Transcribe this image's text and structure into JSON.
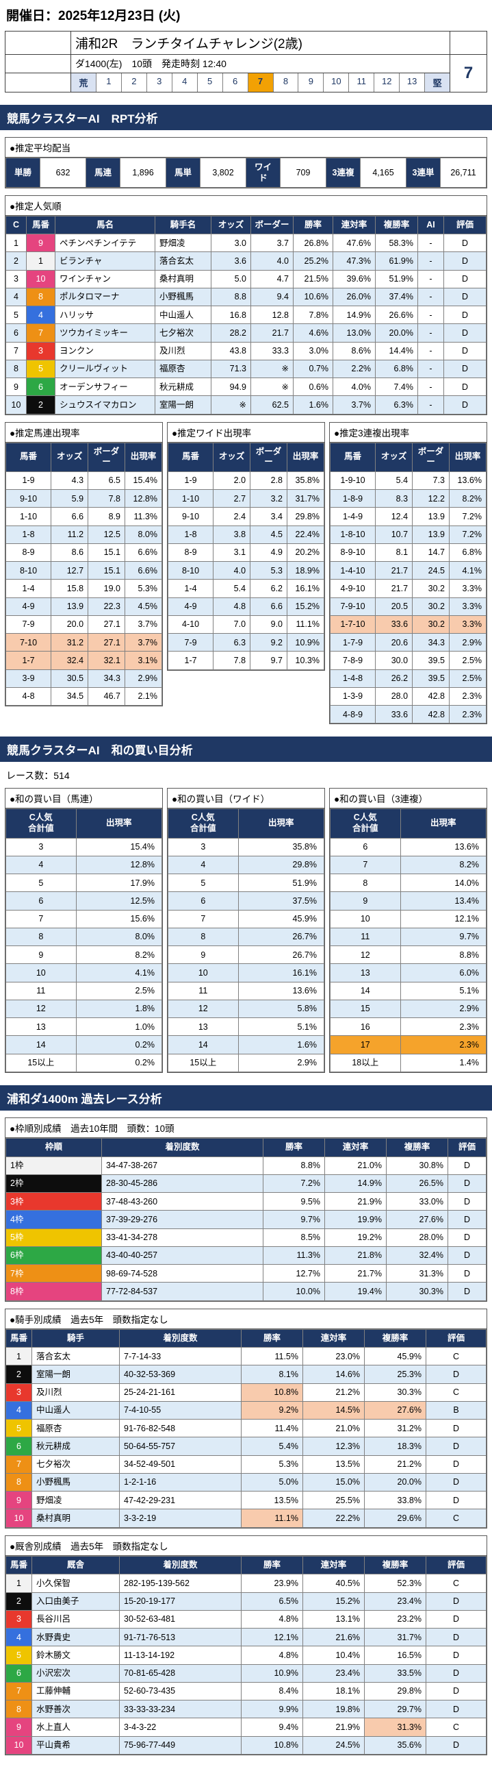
{
  "header": {
    "date": "開催日：2025年12月23日 (火)"
  },
  "race": {
    "name_label": "レース名",
    "name": "浦和2R　ランチタイムチャレンジ(2歳)",
    "detail_label": "レース詳細",
    "detail": "ダ1400(左)　10頭　発走時刻 12:40",
    "rpt_label": "RPT",
    "rpt_value": "7",
    "rpt_scale": [
      {
        "t": "荒",
        "c": "edge"
      },
      {
        "t": "1"
      },
      {
        "t": "2"
      },
      {
        "t": "3"
      },
      {
        "t": "4"
      },
      {
        "t": "5"
      },
      {
        "t": "6"
      },
      {
        "t": "7",
        "c": "sel"
      },
      {
        "t": "8"
      },
      {
        "t": "9"
      },
      {
        "t": "10"
      },
      {
        "t": "11"
      },
      {
        "t": "12"
      },
      {
        "t": "13"
      },
      {
        "t": "堅",
        "c": "edge"
      }
    ]
  },
  "sections": {
    "rpt": "競馬クラスターAI　RPT分析",
    "wa": "競馬クラスターAI　和の買い目分析",
    "past": "浦和ダ1400m 過去レース分析"
  },
  "wa_races_label": "レース数：514",
  "colors": {
    "navy": "#1F3864",
    "zebra": "#DDEBF7",
    "highlight_salmon": "#F8CBAD",
    "highlight_orange": "#F5A32B",
    "rpt_selected_bg": "#F2A104",
    "rpt_value_bg": "#BDD7EE"
  },
  "tables": {
    "payout": {
      "title": "●推定平均配当",
      "rows": [
        [
          {
            "t": "単勝",
            "c": "lbl"
          },
          "632",
          {
            "t": "馬連",
            "c": "lbl"
          },
          "1,896",
          {
            "t": "馬単",
            "c": "lbl"
          },
          "3,802",
          {
            "t": "ワイド",
            "c": "lbl"
          },
          "709",
          {
            "t": "3連複",
            "c": "lbl"
          },
          "4,165",
          {
            "t": "3連単",
            "c": "lbl"
          },
          "26,711"
        ]
      ]
    },
    "popularity": {
      "title": "●推定人気順",
      "headers": [
        "C",
        "馬番",
        "馬名",
        "騎手名",
        "オッズ",
        "ボーダー",
        "勝率",
        "連対率",
        "複勝率",
        "AI",
        "評価"
      ],
      "rows": [
        [
          "1",
          {
            "t": "9",
            "c": "waku8"
          },
          "ペチンペチンイテテ",
          "野畑凌",
          "3.0",
          "3.7",
          "26.8%",
          "47.6%",
          "58.3%",
          "-",
          "D"
        ],
        [
          "2",
          {
            "t": "1",
            "c": "waku1"
          },
          "ビランチャ",
          "落合玄太",
          "3.6",
          "4.0",
          "25.2%",
          "47.3%",
          "61.9%",
          "-",
          "D"
        ],
        [
          "3",
          {
            "t": "10",
            "c": "waku8"
          },
          "ワインチャン",
          "桑村真明",
          "5.0",
          "4.7",
          "21.5%",
          "39.6%",
          "51.9%",
          "-",
          "D"
        ],
        [
          "4",
          {
            "t": "8",
            "c": "waku7"
          },
          "ポルタロマーナ",
          "小野楓馬",
          "8.8",
          "9.4",
          "10.6%",
          "26.0%",
          "37.4%",
          "-",
          "D"
        ],
        [
          "5",
          {
            "t": "4",
            "c": "waku4"
          },
          "ハリッサ",
          "中山遥人",
          "16.8",
          "12.8",
          "7.8%",
          "14.9%",
          "26.6%",
          "-",
          "D"
        ],
        [
          "6",
          {
            "t": "7",
            "c": "waku7"
          },
          "ツウカイミッキー",
          "七夕裕次",
          "28.2",
          "21.7",
          "4.6%",
          "13.0%",
          "20.0%",
          "-",
          "D"
        ],
        [
          "7",
          {
            "t": "3",
            "c": "waku3"
          },
          "ヨンクン",
          "及川烈",
          "43.8",
          "33.3",
          "3.0%",
          "8.6%",
          "14.4%",
          "-",
          "D"
        ],
        [
          "8",
          {
            "t": "5",
            "c": "waku5"
          },
          "クリールヴィット",
          "福原杏",
          "71.3",
          "※",
          "0.7%",
          "2.2%",
          "6.8%",
          "-",
          "D"
        ],
        [
          "9",
          {
            "t": "6",
            "c": "waku6"
          },
          "オーデンサフィー",
          "秋元耕成",
          "94.9",
          "※",
          "0.6%",
          "4.0%",
          "7.4%",
          "-",
          "D"
        ],
        [
          "10",
          {
            "t": "2",
            "c": "waku2"
          },
          "シュウスイマカロン",
          "室陽一朗",
          "※",
          "62.5",
          "1.6%",
          "3.7%",
          "6.3%",
          "-",
          "D"
        ]
      ]
    },
    "umaren": {
      "title": "●推定馬連出現率",
      "headers": [
        "馬番",
        "オッズ",
        "ボーダー",
        "出現率"
      ],
      "rows": [
        [
          "1-9",
          "4.3",
          "6.5",
          "15.4%"
        ],
        [
          "9-10",
          "5.9",
          "7.8",
          "12.8%"
        ],
        [
          "1-10",
          "6.6",
          "8.9",
          "11.3%"
        ],
        [
          "1-8",
          "11.2",
          "12.5",
          "8.0%"
        ],
        [
          "8-9",
          "8.6",
          "15.1",
          "6.6%"
        ],
        [
          "8-10",
          "12.7",
          "15.1",
          "6.6%"
        ],
        [
          "1-4",
          "15.8",
          "19.0",
          "5.3%"
        ],
        [
          "4-9",
          "13.9",
          "22.3",
          "4.5%"
        ],
        [
          "7-9",
          "20.0",
          "27.1",
          "3.7%"
        ],
        {
          "cls": "hlrow",
          "cells": [
            "7-10",
            "31.2",
            "27.1",
            "3.7%"
          ]
        },
        {
          "cls": "hlrow",
          "cells": [
            "1-7",
            "32.4",
            "32.1",
            "3.1%"
          ]
        },
        [
          "3-9",
          "30.5",
          "34.3",
          "2.9%"
        ],
        [
          "4-8",
          "34.5",
          "46.7",
          "2.1%"
        ]
      ]
    },
    "wide": {
      "title": "●推定ワイド出現率",
      "headers": [
        "馬番",
        "オッズ",
        "ボーダー",
        "出現率"
      ],
      "rows": [
        [
          "1-9",
          "2.0",
          "2.8",
          "35.8%"
        ],
        [
          "1-10",
          "2.7",
          "3.2",
          "31.7%"
        ],
        [
          "9-10",
          "2.4",
          "3.4",
          "29.8%"
        ],
        [
          "1-8",
          "3.8",
          "4.5",
          "22.4%"
        ],
        [
          "8-9",
          "3.1",
          "4.9",
          "20.2%"
        ],
        [
          "8-10",
          "4.0",
          "5.3",
          "18.9%"
        ],
        [
          "1-4",
          "5.4",
          "6.2",
          "16.1%"
        ],
        [
          "4-9",
          "4.8",
          "6.6",
          "15.2%"
        ],
        [
          "4-10",
          "7.0",
          "9.0",
          "11.1%"
        ],
        [
          "7-9",
          "6.3",
          "9.2",
          "10.9%"
        ],
        [
          "1-7",
          "7.8",
          "9.7",
          "10.3%"
        ]
      ]
    },
    "sanrenpuku": {
      "title": "●推定3連複出現率",
      "headers": [
        "馬番",
        "オッズ",
        "ボーダー",
        "出現率"
      ],
      "rows": [
        [
          "1-9-10",
          "5.4",
          "7.3",
          "13.6%"
        ],
        [
          "1-8-9",
          "8.3",
          "12.2",
          "8.2%"
        ],
        [
          "1-4-9",
          "12.4",
          "13.9",
          "7.2%"
        ],
        [
          "1-8-10",
          "10.7",
          "13.9",
          "7.2%"
        ],
        [
          "8-9-10",
          "8.1",
          "14.7",
          "6.8%"
        ],
        [
          "1-4-10",
          "21.7",
          "24.5",
          "4.1%"
        ],
        [
          "4-9-10",
          "21.7",
          "30.2",
          "3.3%"
        ],
        [
          "7-9-10",
          "20.5",
          "30.2",
          "3.3%"
        ],
        {
          "cls": "hlrow",
          "cells": [
            "1-7-10",
            "33.6",
            "30.2",
            "3.3%"
          ]
        },
        [
          "1-7-9",
          "20.6",
          "34.3",
          "2.9%"
        ],
        [
          "7-8-9",
          "30.0",
          "39.5",
          "2.5%"
        ],
        [
          "1-4-8",
          "26.2",
          "39.5",
          "2.5%"
        ],
        [
          "1-3-9",
          "28.0",
          "42.8",
          "2.3%"
        ],
        [
          "4-8-9",
          "33.6",
          "42.8",
          "2.3%"
        ]
      ]
    },
    "wa_umaren": {
      "title": "●和の買い目（馬連）",
      "headers": [
        "C人気\n合計値",
        "出現率"
      ],
      "rows": [
        [
          "3",
          "15.4%"
        ],
        [
          "4",
          "12.8%"
        ],
        [
          "5",
          "17.9%"
        ],
        [
          "6",
          "12.5%"
        ],
        [
          "7",
          "15.6%"
        ],
        [
          "8",
          "8.0%"
        ],
        [
          "9",
          "8.2%"
        ],
        [
          "10",
          "4.1%"
        ],
        [
          "11",
          "2.5%"
        ],
        [
          "12",
          "1.8%"
        ],
        [
          "13",
          "1.0%"
        ],
        [
          "14",
          "0.2%"
        ],
        [
          "15以上",
          "0.2%"
        ]
      ]
    },
    "wa_wide": {
      "title": "●和の買い目（ワイド）",
      "headers": [
        "C人気\n合計値",
        "出現率"
      ],
      "rows": [
        [
          "3",
          "35.8%"
        ],
        [
          "4",
          "29.8%"
        ],
        [
          "5",
          "51.9%"
        ],
        [
          "6",
          "37.5%"
        ],
        [
          "7",
          "45.9%"
        ],
        [
          "8",
          "26.7%"
        ],
        [
          "9",
          "26.7%"
        ],
        [
          "10",
          "16.1%"
        ],
        [
          "11",
          "13.6%"
        ],
        [
          "12",
          "5.8%"
        ],
        [
          "13",
          "5.1%"
        ],
        [
          "14",
          "1.6%"
        ],
        [
          "15以上",
          "2.9%"
        ]
      ]
    },
    "wa_sanren": {
      "title": "●和の買い目（3連複）",
      "headers": [
        "C人気\n合計値",
        "出現率"
      ],
      "rows": [
        [
          "6",
          "13.6%"
        ],
        [
          "7",
          "8.2%"
        ],
        [
          "8",
          "14.0%"
        ],
        [
          "9",
          "13.4%"
        ],
        [
          "10",
          "12.1%"
        ],
        [
          "11",
          "9.7%"
        ],
        [
          "12",
          "8.8%"
        ],
        [
          "13",
          "6.0%"
        ],
        [
          "14",
          "5.1%"
        ],
        [
          "15",
          "2.9%"
        ],
        [
          "16",
          "2.3%"
        ],
        {
          "cls": "orow",
          "cells": [
            "17",
            "2.3%"
          ]
        },
        [
          "18以上",
          "1.4%"
        ]
      ]
    },
    "waku": {
      "title": "●枠順別成績　過去10年間　頭数：10頭",
      "headers": [
        "枠順",
        "着別度数",
        "勝率",
        "連対率",
        "複勝率",
        "評価"
      ],
      "rows": [
        [
          {
            "t": "1枠",
            "c": "waku1"
          },
          "34-47-38-267",
          "8.8%",
          "21.0%",
          "30.8%",
          "D"
        ],
        [
          {
            "t": "2枠",
            "c": "waku2"
          },
          "28-30-45-286",
          "7.2%",
          "14.9%",
          "26.5%",
          "D"
        ],
        [
          {
            "t": "3枠",
            "c": "waku3"
          },
          "37-48-43-260",
          "9.5%",
          "21.9%",
          "33.0%",
          "D"
        ],
        [
          {
            "t": "4枠",
            "c": "waku4"
          },
          "37-39-29-276",
          "9.7%",
          "19.9%",
          "27.6%",
          "D"
        ],
        [
          {
            "t": "5枠",
            "c": "waku5"
          },
          "33-41-34-278",
          "8.5%",
          "19.2%",
          "28.0%",
          "D"
        ],
        [
          {
            "t": "6枠",
            "c": "waku6"
          },
          "43-40-40-257",
          "11.3%",
          "21.8%",
          "32.4%",
          "D"
        ],
        [
          {
            "t": "7枠",
            "c": "waku7"
          },
          "98-69-74-528",
          "12.7%",
          "21.7%",
          "31.3%",
          "D"
        ],
        [
          {
            "t": "8枠",
            "c": "waku8"
          },
          "77-72-84-537",
          "10.0%",
          "19.4%",
          "30.3%",
          "D"
        ]
      ]
    },
    "jockey": {
      "title": "●騎手別成績　過去5年　頭数指定なし",
      "headers": [
        "馬番",
        "騎手",
        "着別度数",
        "勝率",
        "連対率",
        "複勝率",
        "評価"
      ],
      "rows": [
        [
          {
            "t": "1",
            "c": "waku1"
          },
          "落合玄太",
          "7-7-14-33",
          "11.5%",
          "23.0%",
          "45.9%",
          "C"
        ],
        [
          {
            "t": "2",
            "c": "waku2"
          },
          "室陽一朗",
          "40-32-53-369",
          "8.1%",
          "14.6%",
          "25.3%",
          "D"
        ],
        [
          {
            "t": "3",
            "c": "waku3"
          },
          "及川烈",
          "25-24-21-161",
          {
            "t": "10.8%",
            "c": "hl"
          },
          "21.2%",
          "30.3%",
          "C"
        ],
        [
          {
            "t": "4",
            "c": "waku4"
          },
          "中山遥人",
          "7-4-10-55",
          {
            "t": "9.2%",
            "c": "hl"
          },
          {
            "t": "14.5%",
            "c": "hl"
          },
          {
            "t": "27.6%",
            "c": "hl"
          },
          "B"
        ],
        [
          {
            "t": "5",
            "c": "waku5"
          },
          "福原杏",
          "91-76-82-548",
          "11.4%",
          "21.0%",
          "31.2%",
          "D"
        ],
        [
          {
            "t": "6",
            "c": "waku6"
          },
          "秋元耕成",
          "50-64-55-757",
          "5.4%",
          "12.3%",
          "18.3%",
          "D"
        ],
        [
          {
            "t": "7",
            "c": "waku7"
          },
          "七夕裕次",
          "34-52-49-501",
          "5.3%",
          "13.5%",
          "21.2%",
          "D"
        ],
        [
          {
            "t": "8",
            "c": "waku7"
          },
          "小野楓馬",
          "1-2-1-16",
          "5.0%",
          "15.0%",
          "20.0%",
          "D"
        ],
        [
          {
            "t": "9",
            "c": "waku8"
          },
          "野畑凌",
          "47-42-29-231",
          "13.5%",
          "25.5%",
          "33.8%",
          "D"
        ],
        [
          {
            "t": "10",
            "c": "waku8"
          },
          "桑村真明",
          "3-3-2-19",
          {
            "t": "11.1%",
            "c": "hl"
          },
          "22.2%",
          "29.6%",
          "C"
        ]
      ]
    },
    "trainer": {
      "title": "●厩舎別成績　過去5年　頭数指定なし",
      "headers": [
        "馬番",
        "厩舎",
        "着別度数",
        "勝率",
        "連対率",
        "複勝率",
        "評価"
      ],
      "rows": [
        [
          {
            "t": "1",
            "c": "waku1"
          },
          "小久保智",
          "282-195-139-562",
          "23.9%",
          "40.5%",
          "52.3%",
          "C"
        ],
        [
          {
            "t": "2",
            "c": "waku2"
          },
          "入口由美子",
          "15-20-19-177",
          "6.5%",
          "15.2%",
          "23.4%",
          "D"
        ],
        [
          {
            "t": "3",
            "c": "waku3"
          },
          "長谷川呂",
          "30-52-63-481",
          "4.8%",
          "13.1%",
          "23.2%",
          "D"
        ],
        [
          {
            "t": "4",
            "c": "waku4"
          },
          "水野貴史",
          "91-71-76-513",
          "12.1%",
          "21.6%",
          "31.7%",
          "D"
        ],
        [
          {
            "t": "5",
            "c": "waku5"
          },
          "鈴木勝文",
          "11-13-14-192",
          "4.8%",
          "10.4%",
          "16.5%",
          "D"
        ],
        [
          {
            "t": "6",
            "c": "waku6"
          },
          "小沢宏次",
          "70-81-65-428",
          "10.9%",
          "23.4%",
          "33.5%",
          "D"
        ],
        [
          {
            "t": "7",
            "c": "waku7"
          },
          "工藤伸輔",
          "52-60-73-435",
          "8.4%",
          "18.1%",
          "29.8%",
          "D"
        ],
        [
          {
            "t": "8",
            "c": "waku7"
          },
          "水野善次",
          "33-33-33-234",
          "9.9%",
          "19.8%",
          "29.7%",
          "D"
        ],
        [
          {
            "t": "9",
            "c": "waku8"
          },
          "水上直人",
          "3-4-3-22",
          "9.4%",
          "21.9%",
          {
            "t": "31.3%",
            "c": "hl"
          },
          "C"
        ],
        [
          {
            "t": "10",
            "c": "waku8"
          },
          "平山貴希",
          "75-96-77-449",
          "10.8%",
          "24.5%",
          "35.6%",
          "D"
        ]
      ]
    }
  }
}
